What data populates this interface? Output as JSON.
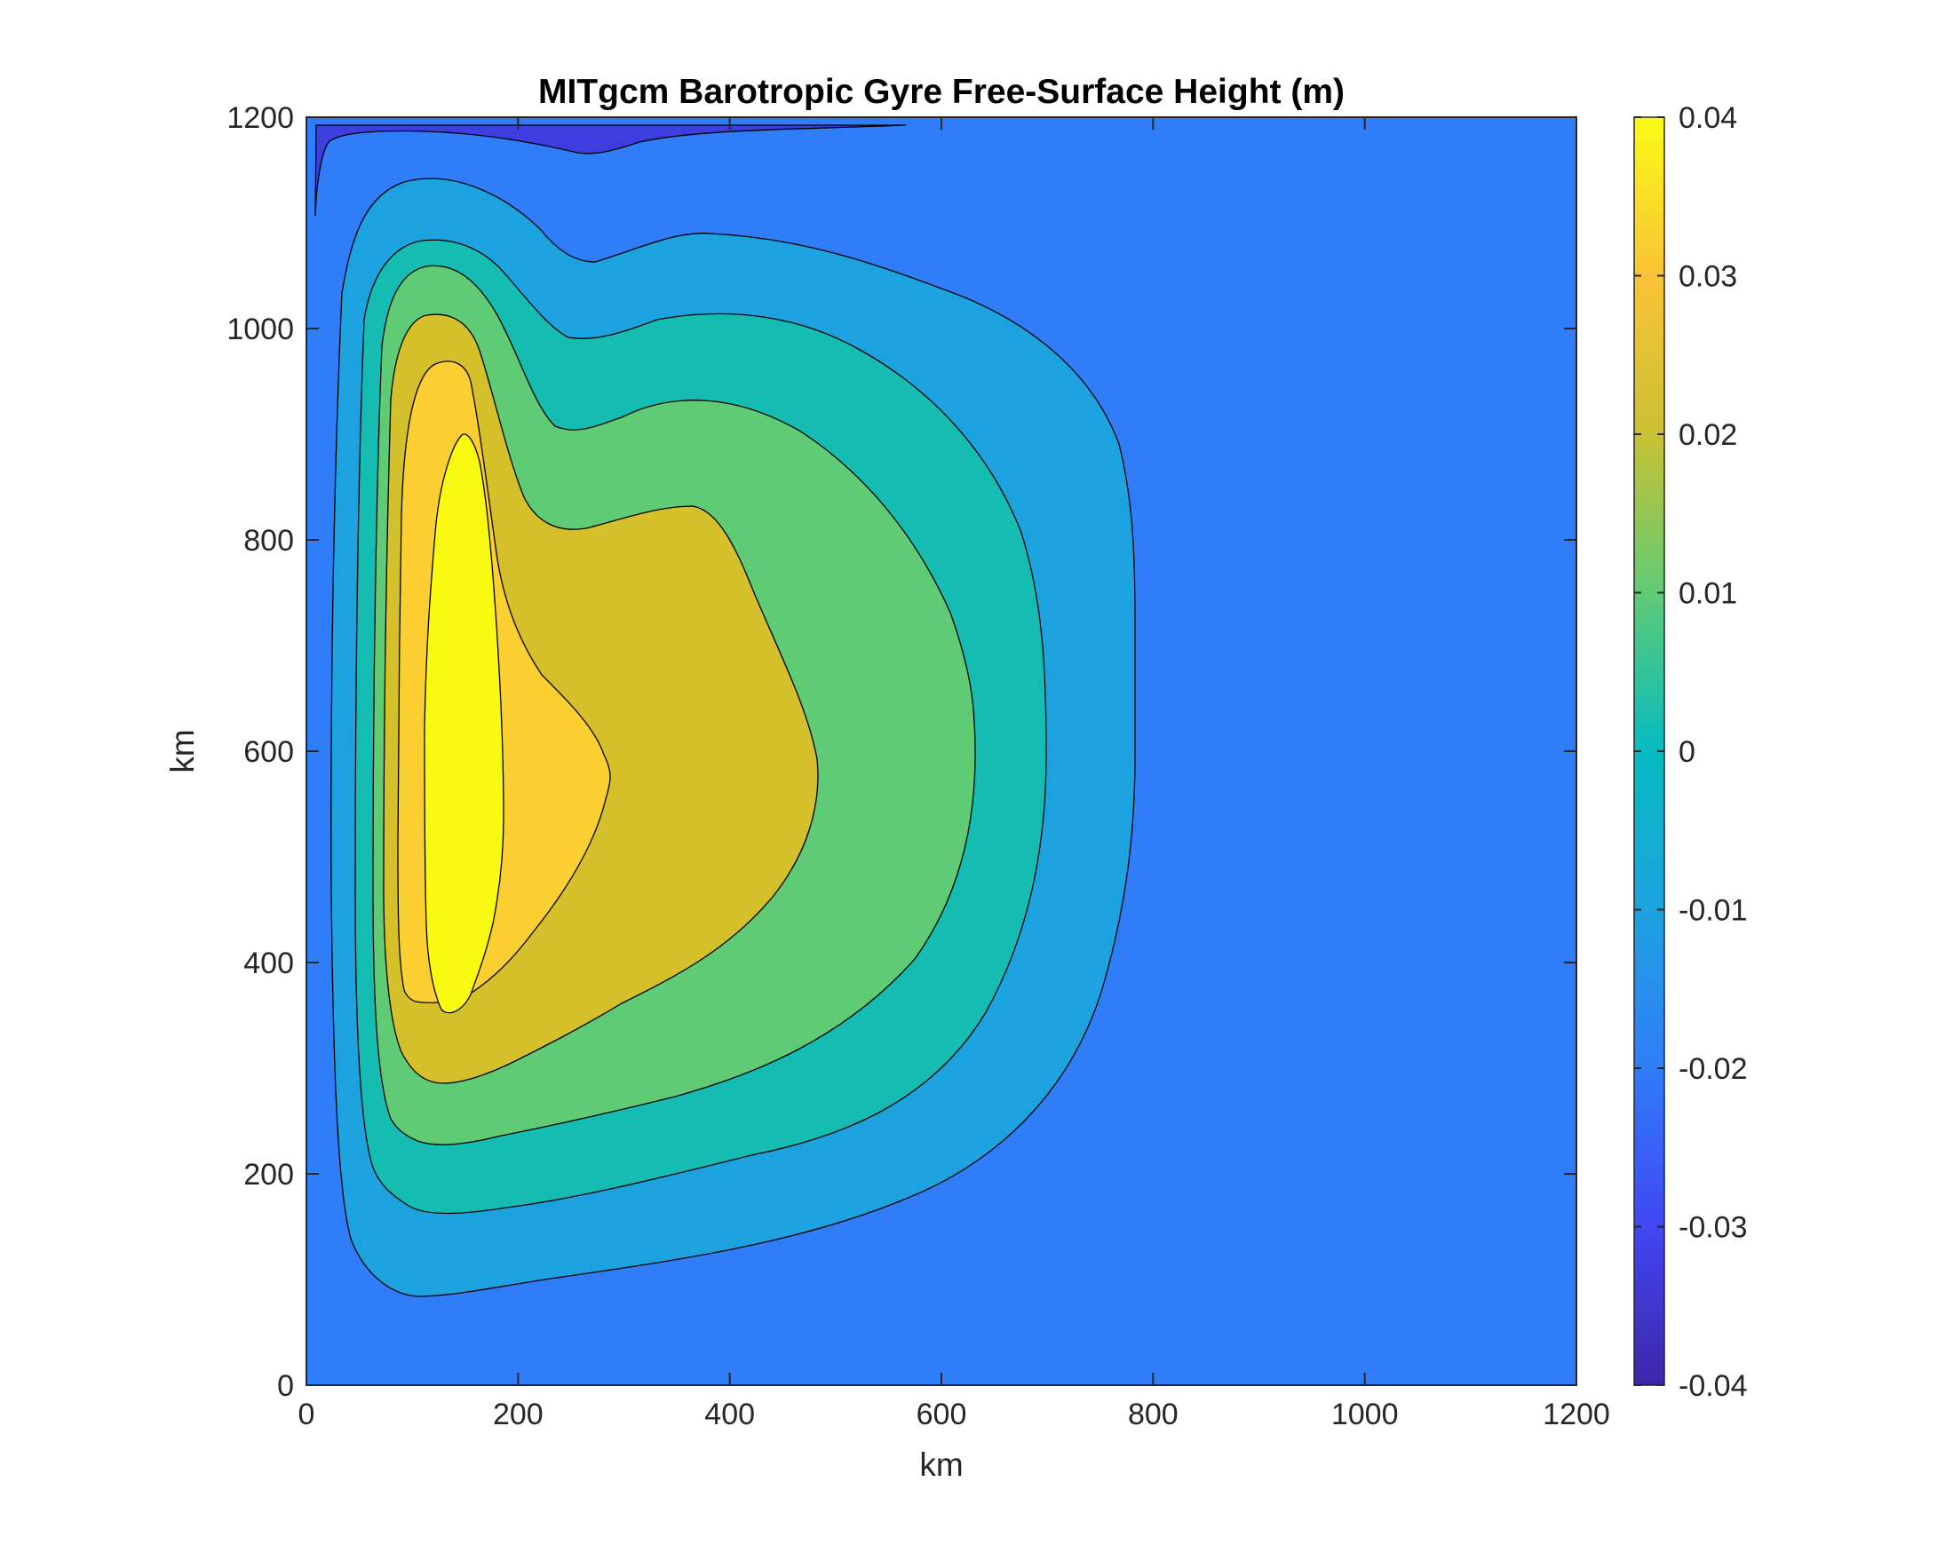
{
  "chart_data": {
    "type": "contour",
    "title": "MITgcm Barotropic Gyre Free-Surface Height (m)",
    "xlabel": "km",
    "ylabel": "km",
    "xlim": [
      0,
      1200
    ],
    "ylim": [
      0,
      1200
    ],
    "x_ticks": [
      "0",
      "200",
      "400",
      "600",
      "800",
      "1000",
      "1200"
    ],
    "y_ticks": [
      "0",
      "200",
      "400",
      "600",
      "800",
      "1000",
      "1200"
    ],
    "colorbar": {
      "range": [
        -0.04,
        0.04
      ],
      "ticks": [
        "0.04",
        "0.03",
        "0.02",
        "0.01",
        "0",
        "-0.01",
        "-0.02",
        "-0.03",
        "-0.04"
      ],
      "colormap": "parula"
    },
    "contour_levels": [
      -0.03,
      -0.02,
      -0.01,
      0,
      0.01,
      0.02,
      0.03
    ],
    "fill_colors": {
      "below_-0.03": "#3d3ee0",
      "-0.02_to_-0.01": "#2f7df9",
      "-0.01_to_0": "#1da2e0",
      "0_to_0.01": "#15bcb2",
      "0.01_to_0.02": "#5fcb74",
      "0.02_to_0.03": "#d3c02a",
      "0.03_to_0.04": "#fbce31",
      "above_0.04": "#f8fa10"
    },
    "field_extrema": {
      "min": -0.033,
      "max": 0.037,
      "max_location_km": [
        130,
        680
      ]
    }
  }
}
